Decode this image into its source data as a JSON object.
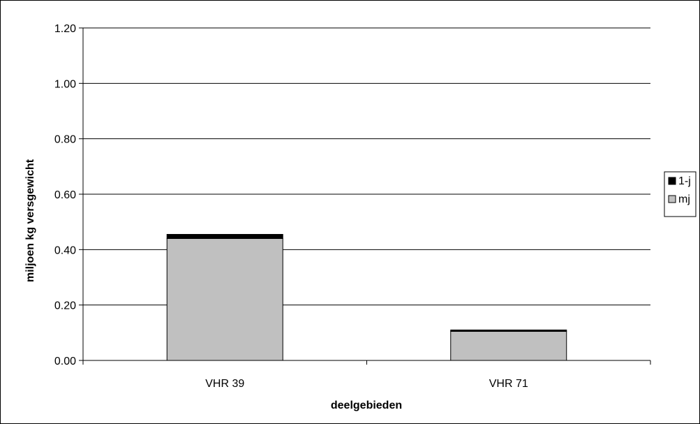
{
  "chart_data": {
    "type": "bar",
    "stacked": true,
    "categories": [
      "VHR 39",
      "VHR 71"
    ],
    "series": [
      {
        "name": "mj",
        "values": [
          0.44,
          0.105
        ],
        "color": "#c0c0c0"
      },
      {
        "name": "1-j",
        "values": [
          0.015,
          0.005
        ],
        "color": "#000000"
      }
    ],
    "xlabel": "deelgebieden",
    "ylabel": "miljoen kg versgewicht",
    "ylim": [
      0,
      1.2
    ],
    "yticks": [
      "0.00",
      "0.20",
      "0.40",
      "0.60",
      "0.80",
      "1.00",
      "1.20"
    ],
    "grid": true,
    "legend": {
      "position": "right",
      "entries": [
        "1-j",
        "mj"
      ]
    }
  }
}
